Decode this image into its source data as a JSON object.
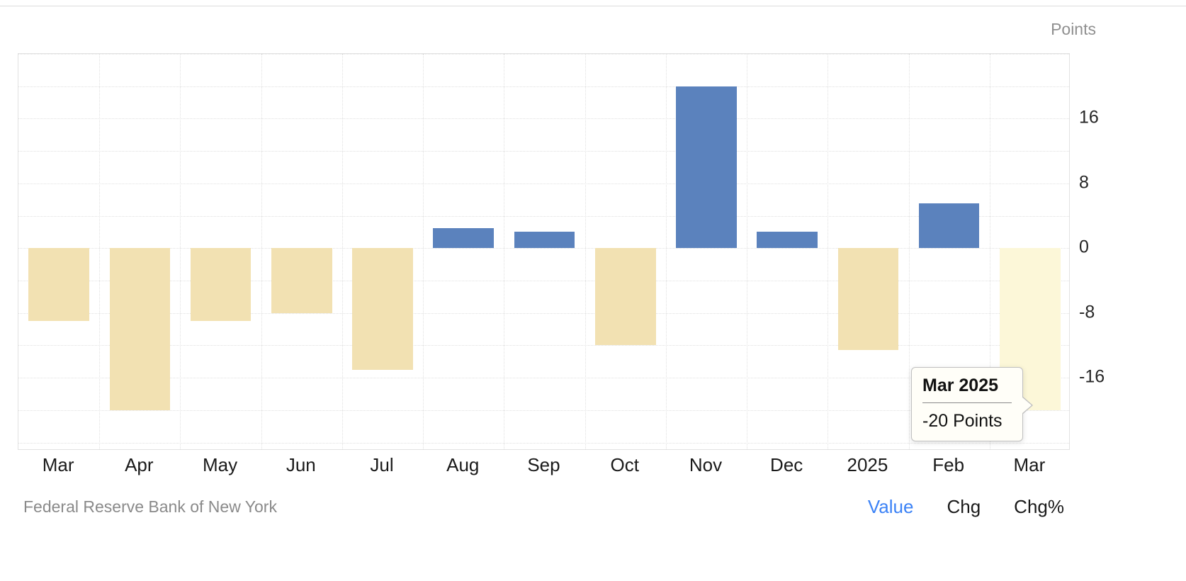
{
  "chart_data": {
    "type": "bar",
    "title": "",
    "unit_label": "Points",
    "categories": [
      "Mar",
      "Apr",
      "May",
      "Jun",
      "Jul",
      "Aug",
      "Sep",
      "Oct",
      "Nov",
      "Dec",
      "2025",
      "Feb",
      "Mar"
    ],
    "values": [
      -9,
      -20,
      -9,
      -8,
      -15,
      2.5,
      2,
      -12,
      20,
      2,
      -12.6,
      5.5,
      -20
    ],
    "ylim": [
      -25,
      24
    ],
    "yticks": [
      16,
      8,
      0,
      -8,
      -16
    ],
    "grid": "dotted",
    "legend": "none",
    "colors": {
      "positive": "#5b82bd",
      "negative": "#f2e1b2",
      "highlight": "#fcf7d8"
    },
    "highlight_index": 12
  },
  "tooltip": {
    "title": "Mar 2025",
    "value": "-20 Points"
  },
  "footer": {
    "source": "Federal Reserve Bank of New York",
    "links": [
      {
        "label": "Value",
        "active": true
      },
      {
        "label": "Chg",
        "active": false
      },
      {
        "label": "Chg%",
        "active": false
      }
    ]
  }
}
